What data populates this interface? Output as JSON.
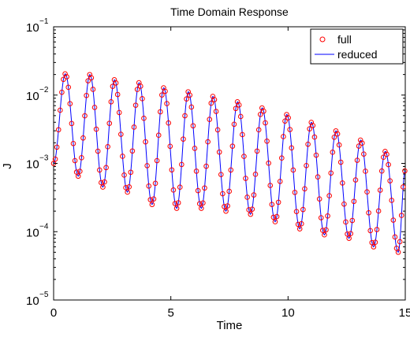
{
  "chart_data": {
    "type": "line",
    "title": "Time Domain Response",
    "xlabel": "Time",
    "ylabel": "J",
    "xlim": [
      0,
      15
    ],
    "ylim": [
      1e-05,
      0.1
    ],
    "yscale": "log",
    "grid": false,
    "legend_position": "top-right",
    "x_ticks": [
      {
        "value": 0,
        "label": "0"
      },
      {
        "value": 5,
        "label": "5"
      },
      {
        "value": 10,
        "label": "10"
      },
      {
        "value": 15,
        "label": "15"
      }
    ],
    "y_ticks": [
      {
        "value": 1e-05,
        "base": "10",
        "exp": "−5"
      },
      {
        "value": 0.0001,
        "base": "10",
        "exp": "−4"
      },
      {
        "value": 0.001,
        "base": "10",
        "exp": "−3"
      },
      {
        "value": 0.01,
        "base": "10",
        "exp": "−2"
      },
      {
        "value": 0.1,
        "base": "10",
        "exp": "−1"
      }
    ],
    "model": {
      "period": 1.055,
      "peak_times": [
        0.5,
        1.55,
        2.6,
        3.65,
        4.7,
        5.75,
        6.8,
        7.85,
        8.9,
        9.95,
        11.0,
        12.05,
        13.1,
        14.15
      ],
      "peak_values": [
        0.0205,
        0.02,
        0.0168,
        0.0152,
        0.0128,
        0.0112,
        0.0096,
        0.008,
        0.0065,
        0.0052,
        0.004,
        0.003,
        0.0022,
        0.0015
      ],
      "trough_times": [
        1.05,
        2.1,
        3.15,
        4.2,
        5.25,
        6.3,
        7.35,
        8.4,
        9.45,
        10.5,
        11.55,
        12.6,
        13.65,
        14.7
      ],
      "trough_values": [
        0.00065,
        0.00045,
        0.00038,
        0.00025,
        0.00022,
        0.00022,
        0.0002,
        0.00018,
        0.00014,
        0.00011,
        9e-05,
        8e-05,
        6e-05,
        5e-05
      ],
      "start": {
        "x": 0,
        "y": 0.001
      },
      "end": {
        "x": 15,
        "y": 0.0008
      },
      "full_step": 0.07,
      "reduced_step": 0.035
    },
    "series": [
      {
        "name": "full",
        "marker": "circle",
        "color": "#ff0000"
      },
      {
        "name": "reduced",
        "marker": "line",
        "color": "#0000ff"
      }
    ]
  }
}
